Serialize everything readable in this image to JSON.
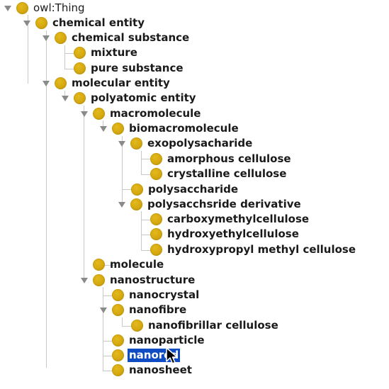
{
  "tree": {
    "nodes": [
      {
        "label": "owl:Thing",
        "expanded": true
      },
      {
        "label": "chemical entity",
        "expanded": true
      },
      {
        "label": "chemical substance",
        "expanded": true
      },
      {
        "label": "mixture",
        "expanded": false
      },
      {
        "label": "pure substance",
        "expanded": false
      },
      {
        "label": "molecular entity",
        "expanded": true
      },
      {
        "label": "polyatomic entity",
        "expanded": true
      },
      {
        "label": "macromolecule",
        "expanded": true
      },
      {
        "label": "biomacromolecule",
        "expanded": true
      },
      {
        "label": "exopolysacharide",
        "expanded": true
      },
      {
        "label": "amorphous cellulose",
        "expanded": false
      },
      {
        "label": "crystalline cellulose",
        "expanded": false
      },
      {
        "label": "polysaccharide",
        "expanded": false
      },
      {
        "label": "polysacchsride derivative",
        "expanded": true
      },
      {
        "label": "carboxymethylcellulose",
        "expanded": false
      },
      {
        "label": "hydroxyethylcellulose",
        "expanded": false
      },
      {
        "label": "hydroxypropyl methyl cellulose",
        "expanded": false
      },
      {
        "label": "molecule",
        "expanded": false
      },
      {
        "label": "nanostructure",
        "expanded": true
      },
      {
        "label": "nanocrystal",
        "expanded": false
      },
      {
        "label": "nanofibre",
        "expanded": true
      },
      {
        "label": "nanofibrillar cellulose",
        "expanded": false
      },
      {
        "label": "nanoparticle",
        "expanded": false
      },
      {
        "label": "nanorod",
        "expanded": false,
        "selected": true
      },
      {
        "label": "nanosheet",
        "expanded": false
      }
    ]
  },
  "colors": {
    "bullet": "#d4a80f",
    "selection": "#0f4cc4",
    "toggle": "#8a8a8a",
    "connector": "#c8c8c8"
  },
  "icons": {
    "expanded_toggle": "triangle-down-icon",
    "class_bullet": "class-circle-icon",
    "pointer": "mouse-pointer-icon"
  }
}
